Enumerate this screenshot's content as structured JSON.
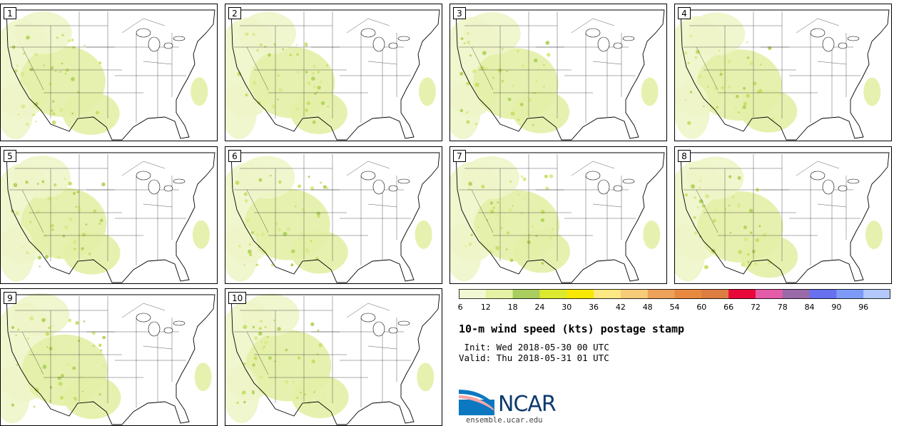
{
  "panels": [
    {
      "label": "1"
    },
    {
      "label": "2"
    },
    {
      "label": "3"
    },
    {
      "label": "4"
    },
    {
      "label": "5"
    },
    {
      "label": "6"
    },
    {
      "label": "7"
    },
    {
      "label": "8"
    },
    {
      "label": "9"
    },
    {
      "label": "10"
    }
  ],
  "colorbar": {
    "ticks": [
      "6",
      "12",
      "18",
      "24",
      "30",
      "36",
      "42",
      "48",
      "54",
      "60",
      "66",
      "72",
      "78",
      "84",
      "90",
      "96"
    ],
    "colors": [
      "#f2f7d4",
      "#e5f2a5",
      "#a9cd5f",
      "#dbea2e",
      "#f7e805",
      "#fde981",
      "#f6cc7a",
      "#eda25a",
      "#e9893f",
      "#dd7d42",
      "#e8083a",
      "#e45ca8",
      "#9a6aa9",
      "#6770ef",
      "#7d9bf6",
      "#b3c8fb"
    ]
  },
  "title": "10-m wind speed (kts) postage stamp",
  "init": " Init: Wed 2018-05-30 00 UTC",
  "valid": "Valid: Thu 2018-05-31 01 UTC",
  "logo": {
    "name": "ncar-logo",
    "text": "NCAR",
    "url": "ensemble.ucar.edu",
    "colors": [
      "#0b78c1",
      "#0d3a6e"
    ]
  }
}
